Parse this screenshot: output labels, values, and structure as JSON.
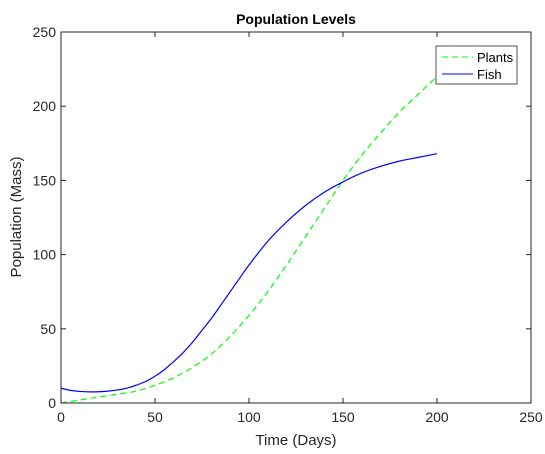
{
  "chart_data": {
    "type": "line",
    "title": "Population Levels",
    "xlabel": "Time (Days)",
    "ylabel": "Population (Mass)",
    "xlim": [
      0,
      250
    ],
    "ylim": [
      0,
      250
    ],
    "xticks": [
      0,
      50,
      100,
      150,
      200,
      250
    ],
    "yticks": [
      0,
      50,
      100,
      150,
      200,
      250
    ],
    "xtick_labels": [
      "0",
      "50",
      "100",
      "150",
      "200",
      "250"
    ],
    "ytick_labels": [
      "0",
      "50",
      "100",
      "150",
      "200",
      "250"
    ],
    "grid": false,
    "legend_position": "top-right",
    "series": [
      {
        "name": "Plants",
        "color": "#00ff00",
        "line_style": "dashed",
        "x": [
          0,
          10,
          20,
          30,
          40,
          50,
          60,
          70,
          80,
          90,
          100,
          110,
          120,
          130,
          140,
          150,
          160,
          170,
          180,
          190,
          200
        ],
        "y": [
          0,
          2,
          4,
          6,
          8,
          12,
          17,
          24,
          33,
          45,
          59,
          75,
          93,
          112,
          131,
          150,
          167,
          182,
          196,
          208,
          220
        ]
      },
      {
        "name": "Fish",
        "color": "#0000ff",
        "line_style": "solid",
        "x": [
          0,
          5,
          10,
          15,
          20,
          25,
          30,
          35,
          40,
          45,
          50,
          55,
          60,
          65,
          70,
          75,
          80,
          85,
          90,
          95,
          100,
          110,
          120,
          130,
          140,
          150,
          160,
          170,
          180,
          190,
          200
        ],
        "y": [
          10,
          8.5,
          7.8,
          7.5,
          7.6,
          8,
          8.8,
          10,
          12,
          14.5,
          18,
          22.5,
          28,
          34,
          41,
          49,
          57,
          66,
          75,
          84,
          93,
          109,
          122,
          133,
          142,
          149,
          155,
          159.5,
          163,
          165.5,
          168
        ]
      }
    ]
  }
}
